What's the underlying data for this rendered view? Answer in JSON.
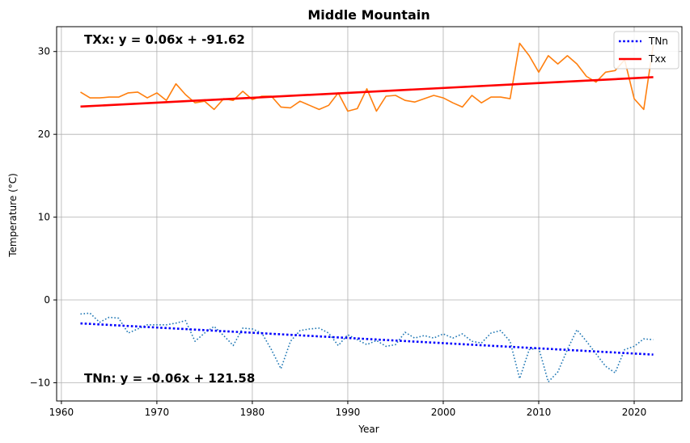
{
  "chart_data": {
    "type": "line",
    "title": "Middle Mountain",
    "xlabel": "Year",
    "ylabel": "Temperature (°C)",
    "xlim": [
      1959.5,
      2025.0
    ],
    "ylim": [
      -12.2,
      33.0
    ],
    "xticks": [
      1960,
      1970,
      1980,
      1990,
      2000,
      2010,
      2020
    ],
    "yticks": [
      -10,
      0,
      10,
      20,
      30
    ],
    "grid": true,
    "legend_position": "top-right",
    "x": [
      1962,
      1963,
      1964,
      1965,
      1966,
      1967,
      1968,
      1969,
      1970,
      1971,
      1972,
      1973,
      1974,
      1975,
      1976,
      1977,
      1978,
      1979,
      1980,
      1981,
      1982,
      1983,
      1984,
      1985,
      1986,
      1987,
      1988,
      1989,
      1990,
      1991,
      1992,
      1993,
      1994,
      1995,
      1996,
      1997,
      1998,
      1999,
      2000,
      2001,
      2002,
      2003,
      2004,
      2005,
      2006,
      2007,
      2008,
      2009,
      2010,
      2011,
      2012,
      2013,
      2014,
      2015,
      2016,
      2017,
      2018,
      2019,
      2020,
      2021,
      2022
    ],
    "series": [
      {
        "key": "txx",
        "color": "#ff7f0e",
        "style": "solid",
        "values": [
          25.1,
          24.4,
          24.4,
          24.5,
          24.5,
          25.0,
          25.1,
          24.4,
          25.0,
          24.1,
          26.1,
          24.8,
          23.8,
          24.0,
          23.0,
          24.3,
          24.1,
          25.2,
          24.2,
          24.6,
          24.6,
          23.3,
          23.2,
          24.0,
          23.5,
          23.0,
          23.5,
          25.0,
          22.8,
          23.1,
          25.5,
          22.8,
          24.6,
          24.7,
          24.1,
          23.9,
          24.3,
          24.7,
          24.4,
          23.8,
          23.3,
          24.7,
          23.8,
          24.5,
          24.5,
          24.3,
          31.0,
          29.5,
          27.5,
          29.5,
          28.5,
          29.5,
          28.5,
          27.0,
          26.3,
          27.5,
          27.7,
          29.0,
          24.3,
          23.0,
          30.8
        ]
      },
      {
        "key": "tnn",
        "color": "#1f77b4",
        "style": "dotted",
        "values": [
          -1.7,
          -1.6,
          -2.7,
          -2.1,
          -2.2,
          -4.0,
          -3.5,
          -3.0,
          -3.0,
          -3.0,
          -2.8,
          -2.5,
          -5.0,
          -4.0,
          -3.2,
          -4.3,
          -5.5,
          -3.4,
          -3.5,
          -4.0,
          -6.0,
          -8.3,
          -5.0,
          -3.7,
          -3.5,
          -3.4,
          -4.0,
          -5.5,
          -4.2,
          -4.8,
          -5.4,
          -4.9,
          -5.6,
          -5.4,
          -3.9,
          -4.6,
          -4.3,
          -4.6,
          -4.1,
          -4.6,
          -4.1,
          -5.0,
          -5.2,
          -4.0,
          -3.7,
          -5.0,
          -9.5,
          -6.0,
          -5.8,
          -9.9,
          -8.7,
          -6.0,
          -3.6,
          -5.0,
          -6.5,
          -8.0,
          -8.8,
          -6.0,
          -5.6,
          -4.7,
          -4.8
        ]
      }
    ],
    "trendlines": [
      {
        "name": "Txx",
        "color": "#ff0000",
        "style": "solid",
        "x": [
          1962,
          2022
        ],
        "y": [
          23.35,
          26.9
        ]
      },
      {
        "name": "TNn",
        "color": "#0000ff",
        "style": "dotted",
        "x": [
          1962,
          2022
        ],
        "y": [
          -2.83,
          -6.6
        ]
      }
    ],
    "annotations": [
      {
        "text": "TXx: y = 0.06x + -91.62"
      },
      {
        "text": "TNn: y = -0.06x + 121.58"
      }
    ],
    "legend": [
      {
        "label": "TNn",
        "color": "#0000ff",
        "style": "dotted"
      },
      {
        "label": "Txx",
        "color": "#ff0000",
        "style": "solid"
      }
    ]
  }
}
